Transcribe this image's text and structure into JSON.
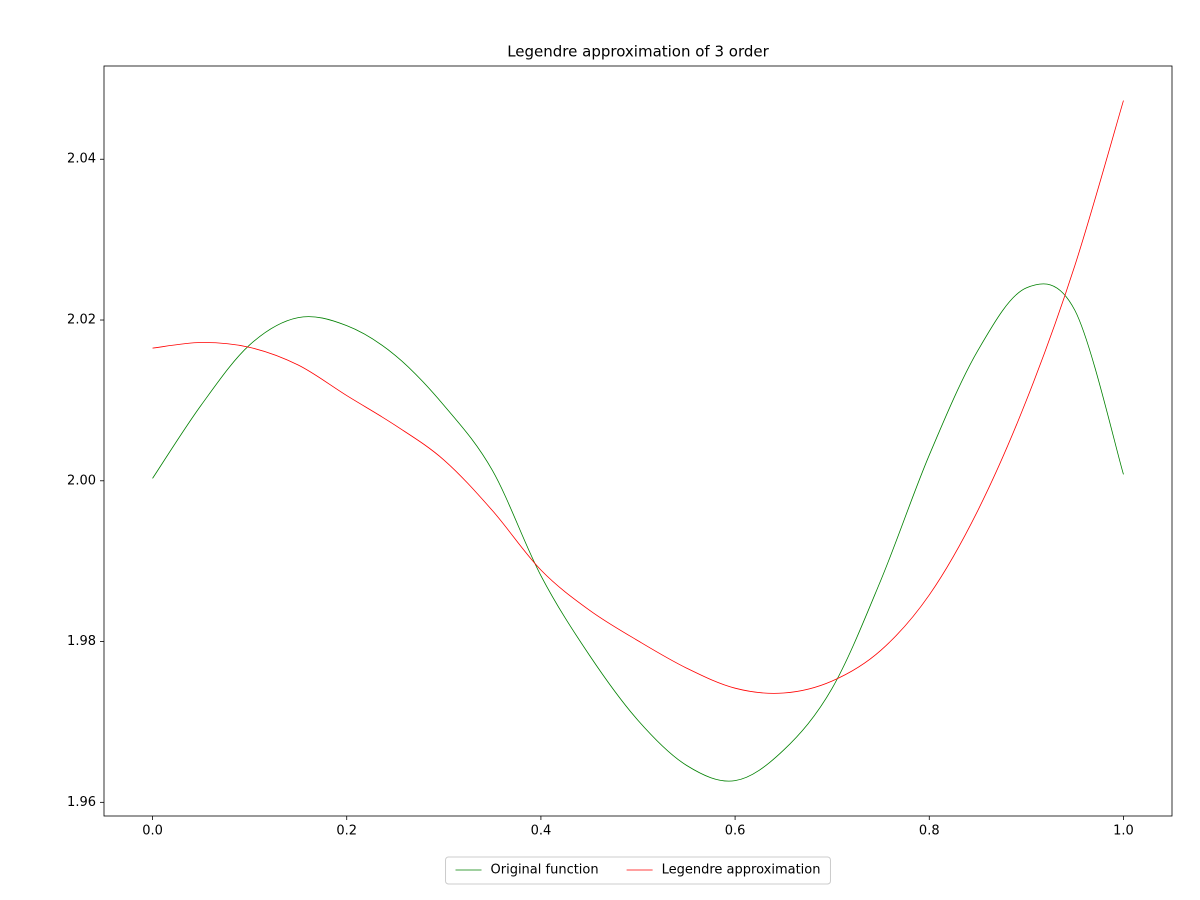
{
  "chart_data": {
    "type": "line",
    "title": "Legendre approximation of 3 order",
    "x": [
      0,
      0.05,
      0.1,
      0.15,
      0.2,
      0.25,
      0.3,
      0.35,
      0.4,
      0.45,
      0.5,
      0.55,
      0.6,
      0.65,
      0.7,
      0.75,
      0.8,
      0.85,
      0.9,
      0.95,
      1.0
    ],
    "series": [
      {
        "name": "Original function",
        "color": "#008000",
        "values": [
          2.0003,
          2.0094,
          2.0169,
          2.0203,
          2.0193,
          2.0156,
          2.0094,
          2.0013,
          1.9882,
          1.9783,
          1.9702,
          1.9646,
          1.9627,
          1.9665,
          1.9742,
          1.9876,
          2.0032,
          2.0162,
          2.024,
          2.0212,
          2.0008
        ]
      },
      {
        "name": "Legendre approximation",
        "color": "#ff0000",
        "values": [
          2.0165,
          2.0172,
          2.0166,
          2.0144,
          2.0106,
          2.0069,
          2.0026,
          1.9963,
          1.9889,
          1.9839,
          1.9801,
          1.9767,
          1.9742,
          1.9736,
          1.9751,
          1.9789,
          1.9858,
          1.9963,
          2.01,
          2.0268,
          2.0473
        ]
      }
    ],
    "xlim": [
      -0.05,
      1.05
    ],
    "ylim": [
      1.9583,
      2.0516
    ],
    "xticks": [
      {
        "value": 0,
        "label": "0.0"
      },
      0.2,
      0.4,
      0.6,
      0.8,
      {
        "value": 1,
        "label": "1.0"
      }
    ],
    "yticks": [
      1.96,
      1.98,
      {
        "value": 2,
        "label": "2.00"
      },
      2.02,
      2.04
    ],
    "grid": false,
    "legend": "bottom"
  }
}
